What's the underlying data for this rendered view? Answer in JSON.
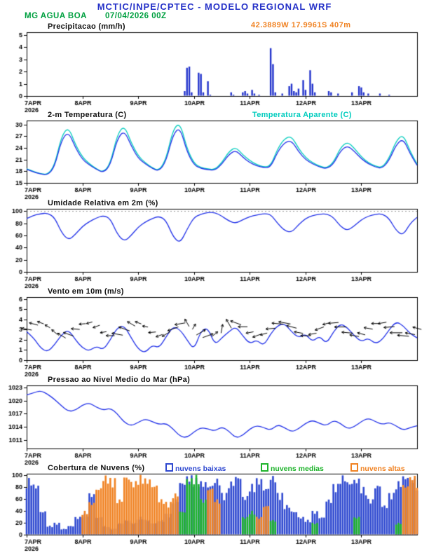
{
  "header": {
    "title": "MCTIC/INPE/CPTEC - MODELO REGIONAL WRF",
    "station": "MG AGUA BOA",
    "run_datetime": "07/04/2026 00Z",
    "location": "42.3889W 17.9961S 407m"
  },
  "colors": {
    "header_blue": "#2531c8",
    "station_green": "#00a040",
    "location_orange": "#f08222",
    "line_blue": "#2030e8",
    "apparent_cyan": "#00ccbe",
    "precip_bar_blue": "#2233cc",
    "cloud_low_blue": "#2f49d0",
    "cloud_mid_green": "#1db32a",
    "cloud_high_orange": "#f08222",
    "axis_black": "#000000"
  },
  "x_axis": {
    "hours_total": 168,
    "tick_hours": [
      0,
      24,
      48,
      72,
      96,
      120,
      144
    ],
    "tick_labels": [
      "7APR",
      "8APR",
      "9APR",
      "10APR",
      "11APR",
      "12APR",
      "13APR"
    ],
    "year_label": "2026"
  },
  "chart_data": [
    {
      "id": "precip",
      "type": "bar",
      "title": "Precipitacao (mm/h)",
      "ylim": [
        0,
        5.2
      ],
      "yticks": [
        0,
        1,
        2,
        3,
        4,
        5
      ],
      "bar_color": "#2233cc",
      "bars": {
        "68": 0.4,
        "69": 2.3,
        "70": 2.4,
        "71": 0.3,
        "74": 1.9,
        "75": 1.8,
        "76": 0.3,
        "78": 1.2,
        "79": 0.1,
        "88": 0.3,
        "89": 0.1,
        "93": 0.3,
        "94": 0.4,
        "95": 0.2,
        "97": 0.5,
        "98": 0.2,
        "100": 0.1,
        "105": 3.9,
        "106": 2.6,
        "107": 0.3,
        "110": 0.2,
        "113": 0.8,
        "114": 1.0,
        "115": 0.4,
        "116": 0.3,
        "117": 0.6,
        "119": 1.3,
        "120": 0.5,
        "122": 2.1,
        "123": 1.0,
        "124": 0.3,
        "130": 0.4,
        "131": 0.3,
        "134": 0.2,
        "140": 0.3,
        "143": 0.8,
        "144": 0.7,
        "145": 0.3,
        "147": 0.2,
        "152": 0.2,
        "156": 0.1
      }
    },
    {
      "id": "temp",
      "type": "line",
      "title": "2-m Temperatura (C)",
      "ylim": [
        15,
        31
      ],
      "yticks": [
        15,
        18,
        21,
        24,
        27,
        30
      ],
      "step_hours": 3,
      "series": [
        {
          "name": "2-m Temperatura (C)",
          "color": "#2030e8",
          "values": [
            18.5,
            17.8,
            17.3,
            17.0,
            19.0,
            26.0,
            28.2,
            24.0,
            21.0,
            19.6,
            18.5,
            17.6,
            19.5,
            26.3,
            28.5,
            24.5,
            21.3,
            19.9,
            18.7,
            18.0,
            20.5,
            27.5,
            29.3,
            23.0,
            19.6,
            18.7,
            18.4,
            18.2,
            19.8,
            22.3,
            23.4,
            21.6,
            20.2,
            19.4,
            18.9,
            19.0,
            23.0,
            25.4,
            25.9,
            23.0,
            21.0,
            19.9,
            19.1,
            18.6,
            19.8,
            23.2,
            24.6,
            23.1,
            21.2,
            19.9,
            19.1,
            18.7,
            20.8,
            24.8,
            26.4,
            22.5,
            19.5
          ]
        },
        {
          "name": "Temperatura Aparente (C)",
          "color": "#00ccbe",
          "values": [
            18.6,
            17.9,
            17.4,
            17.1,
            19.4,
            27.0,
            29.4,
            24.8,
            21.6,
            19.9,
            18.6,
            17.7,
            19.9,
            27.4,
            29.8,
            25.3,
            21.9,
            20.2,
            18.9,
            18.1,
            21.1,
            28.7,
            30.5,
            23.8,
            20.0,
            18.9,
            18.6,
            18.4,
            20.2,
            23.0,
            24.2,
            22.2,
            20.7,
            19.7,
            19.1,
            19.3,
            23.8,
            26.4,
            27.0,
            23.8,
            21.5,
            20.2,
            19.3,
            18.8,
            20.2,
            24.0,
            25.6,
            23.9,
            21.7,
            20.2,
            19.3,
            18.9,
            21.4,
            25.8,
            27.5,
            23.1,
            19.8
          ]
        }
      ]
    },
    {
      "id": "rh",
      "type": "line",
      "title": "Umidade Relativa em 2m (%)",
      "ylim": [
        0,
        104
      ],
      "yticks": [
        0,
        20,
        40,
        60,
        80,
        100
      ],
      "step_hours": 3,
      "dashed_line_y": 100,
      "series": [
        {
          "name": "Umidade Relativa em 2m (%)",
          "color": "#2030e8",
          "values": [
            88,
            93,
            96,
            97,
            90,
            65,
            52,
            62,
            75,
            83,
            89,
            93,
            88,
            62,
            50,
            60,
            74,
            82,
            88,
            92,
            85,
            58,
            47,
            70,
            90,
            95,
            98,
            98,
            92,
            84,
            80,
            86,
            91,
            94,
            96,
            95,
            80,
            68,
            65,
            78,
            88,
            93,
            95,
            96,
            90,
            75,
            68,
            76,
            86,
            92,
            95,
            96,
            88,
            68,
            60,
            80,
            90
          ]
        }
      ]
    },
    {
      "id": "wind",
      "type": "wind",
      "title": "Vento em 10m (m/s)",
      "ylim": [
        0,
        6.2
      ],
      "yticks": [
        0,
        1,
        2,
        3,
        4,
        5,
        6
      ],
      "step_hours": 3,
      "series": [
        {
          "name": "Vento em 10m (m/s)",
          "color": "#2030e8",
          "values": [
            2.8,
            2.2,
            1.2,
            0.8,
            1.5,
            2.5,
            3.0,
            2.0,
            1.2,
            0.9,
            1.4,
            1.0,
            2.0,
            3.2,
            3.4,
            2.2,
            1.1,
            0.7,
            1.5,
            1.2,
            2.3,
            3.3,
            3.0,
            2.0,
            1.0,
            2.9,
            3.2,
            1.5,
            2.2,
            2.8,
            3.3,
            2.4,
            1.6,
            2.0,
            1.4,
            2.6,
            3.4,
            3.6,
            2.8,
            2.2,
            2.6,
            1.8,
            2.4,
            1.6,
            2.8,
            3.6,
            3.2,
            2.4,
            1.8,
            2.2,
            1.6,
            2.0,
            3.0,
            3.8,
            3.4,
            2.6,
            2.2
          ]
        }
      ],
      "arrows": {
        "color": "#000000",
        "step_hours": 3,
        "directions_deg": [
          170,
          165,
          160,
          150,
          140,
          150,
          160,
          175,
          185,
          195,
          200,
          190,
          180,
          170,
          160,
          150,
          160,
          170,
          185,
          200,
          210,
          200,
          190,
          120,
          60,
          30,
          20,
          40,
          80,
          120,
          160,
          180,
          190,
          200,
          195,
          185,
          175,
          170,
          165,
          170,
          180,
          190,
          200,
          195,
          185,
          180,
          175,
          170,
          165,
          170,
          180,
          190,
          185,
          180,
          175,
          170,
          165
        ]
      }
    },
    {
      "id": "pres",
      "type": "line",
      "title": "Pressao ao Nivel Medio do Mar (hPa)",
      "ylim": [
        1009,
        1023.5
      ],
      "yticks": [
        1011,
        1014,
        1017,
        1020,
        1023
      ],
      "step_hours": 3,
      "series": [
        {
          "name": "Pressao ao Nivel Medio do Mar (hPa)",
          "color": "#2030e8",
          "values": [
            1021.3,
            1021.8,
            1022.3,
            1021.5,
            1020.3,
            1018.8,
            1017.5,
            1017.8,
            1019.0,
            1019.5,
            1018.5,
            1017.8,
            1018.3,
            1017.0,
            1015.0,
            1014.2,
            1015.0,
            1015.8,
            1015.2,
            1014.5,
            1014.8,
            1013.5,
            1011.8,
            1011.5,
            1012.8,
            1013.8,
            1013.5,
            1013.0,
            1014.0,
            1013.0,
            1011.4,
            1012.0,
            1013.5,
            1014.3,
            1013.8,
            1013.2,
            1014.5,
            1013.8,
            1012.8,
            1013.5,
            1014.8,
            1015.5,
            1014.8,
            1014.2,
            1015.5,
            1014.8,
            1013.5,
            1014.0,
            1015.2,
            1016.0,
            1015.2,
            1014.5,
            1015.0,
            1014.2,
            1013.2,
            1013.8,
            1014.2
          ]
        }
      ]
    },
    {
      "id": "cloud",
      "type": "multibar",
      "title": "Cobertura de Nuvens (%)",
      "ylim": [
        0,
        102
      ],
      "yticks": [
        0,
        20,
        40,
        60,
        80,
        100
      ],
      "step_hours": 3,
      "series": [
        {
          "name": "nuvens baixas",
          "color": "#2f49d0",
          "values": [
            95,
            85,
            40,
            15,
            20,
            10,
            15,
            30,
            35,
            70,
            30,
            15,
            10,
            20,
            25,
            20,
            30,
            25,
            20,
            25,
            35,
            60,
            90,
            100,
            95,
            90,
            85,
            95,
            70,
            90,
            100,
            65,
            85,
            95,
            80,
            100,
            70,
            50,
            40,
            30,
            25,
            40,
            30,
            60,
            85,
            100,
            90,
            95,
            80,
            60,
            85,
            50,
            70,
            90,
            100,
            95,
            85
          ]
        },
        {
          "name": "nuvens medias",
          "color": "#1db32a",
          "values": [
            0,
            0,
            0,
            0,
            0,
            0,
            0,
            0,
            0,
            0,
            0,
            0,
            0,
            0,
            0,
            0,
            0,
            0,
            0,
            0,
            0,
            0,
            40,
            95,
            100,
            60,
            0,
            0,
            0,
            0,
            0,
            30,
            40,
            0,
            0,
            25,
            0,
            0,
            0,
            0,
            0,
            20,
            0,
            0,
            0,
            0,
            0,
            30,
            0,
            0,
            0,
            0,
            0,
            20,
            0,
            0,
            0
          ]
        },
        {
          "name": "nuvens altas",
          "color": "#f08222",
          "values": [
            0,
            0,
            0,
            0,
            0,
            0,
            0,
            0,
            40,
            55,
            80,
            100,
            95,
            60,
            100,
            90,
            100,
            95,
            85,
            60,
            55,
            70,
            0,
            0,
            0,
            0,
            80,
            60,
            0,
            0,
            0,
            0,
            0,
            30,
            50,
            0,
            0,
            0,
            0,
            0,
            0,
            0,
            0,
            0,
            0,
            0,
            0,
            0,
            0,
            0,
            0,
            0,
            0,
            0,
            85,
            100,
            90
          ]
        }
      ]
    }
  ]
}
